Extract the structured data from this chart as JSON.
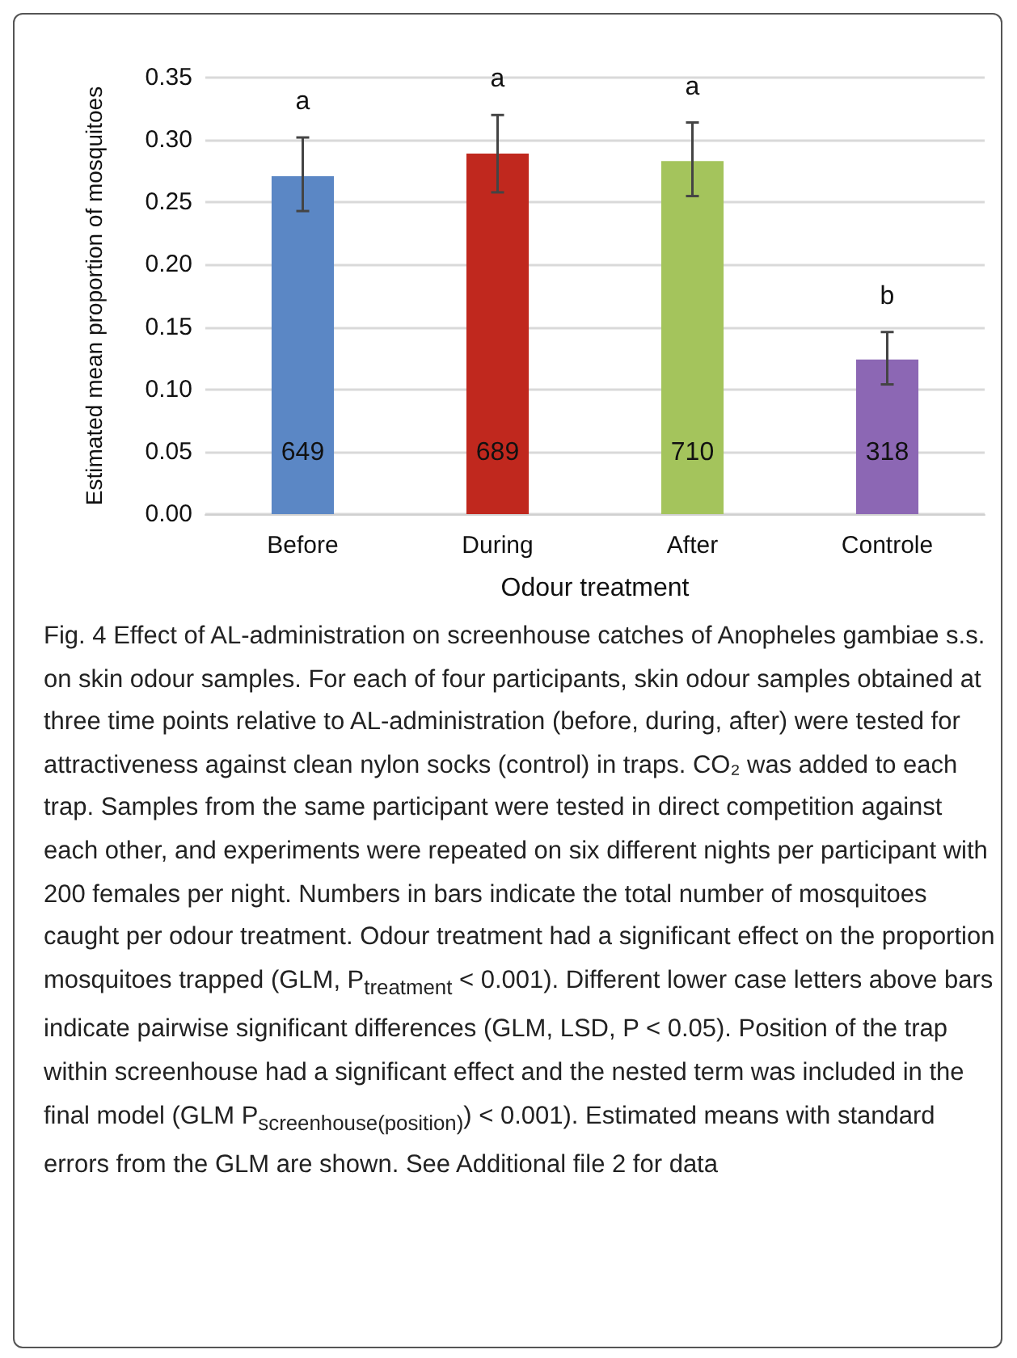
{
  "chart_data": {
    "type": "bar",
    "xlabel": "Odour treatment",
    "ylabel": "Estimated mean proportion of mosquitoes",
    "categories": [
      "Before",
      "During",
      "After",
      "Controle"
    ],
    "values": [
      0.271,
      0.289,
      0.283,
      0.124
    ],
    "colors": [
      "#5b87c5",
      "#c0281e",
      "#a4c45c",
      "#8c67b4"
    ],
    "errors": [
      [
        0.243,
        0.302
      ],
      [
        0.258,
        0.32
      ],
      [
        0.255,
        0.314
      ],
      [
        0.104,
        0.146
      ]
    ],
    "ylim": [
      0,
      0.35
    ],
    "yticks": [
      {
        "value": 0,
        "label": "0.00"
      },
      {
        "value": 0.05,
        "label": "0.05"
      },
      {
        "value": 0.1,
        "label": "0.10"
      },
      {
        "value": 0.15,
        "label": "0.15"
      },
      {
        "value": 0.2,
        "label": "0.20"
      },
      {
        "value": 0.25,
        "label": "0.25"
      },
      {
        "value": 0.3,
        "label": "0.30"
      },
      {
        "value": 0.35,
        "label": "0.35"
      }
    ],
    "grid": "y",
    "annotations": [
      "a",
      "a",
      "a",
      "b",
      "649",
      "689",
      "710",
      "318",
      "Fig. 4 Effect of AL-administration on screenhouse catches of Anopheles gambiae s.s. on skin odour samples. For each of four participants, skin odour samples obtained at three time points relative to AL-administration (before, during, after) were tested for attractiveness against clean nylon socks (control) in traps. CO₂ was added to each trap. Samples from the same participant were tested in direct competition against each other, and experiments were repeated on six different nights per participant with 200 females per night. Numbers in bars indicate the total number of mosquitoes caught per odour treatment. Odour treatment had a significant effect on the proportion mosquitoes trapped (GLM, P$_{treatment}$ < 0.001). Different lower case letters above bars indicate pairwise significant differences (GLM, LSD, P < 0.05). Position of the trap within screenhouse had a significant effect and the nested term was included in the final model (GLM P$_{screenhouse(position)}$) < 0.001). Estimated means with standard errors from the GLM are shown. See Additional file 2 for data"
    ]
  }
}
